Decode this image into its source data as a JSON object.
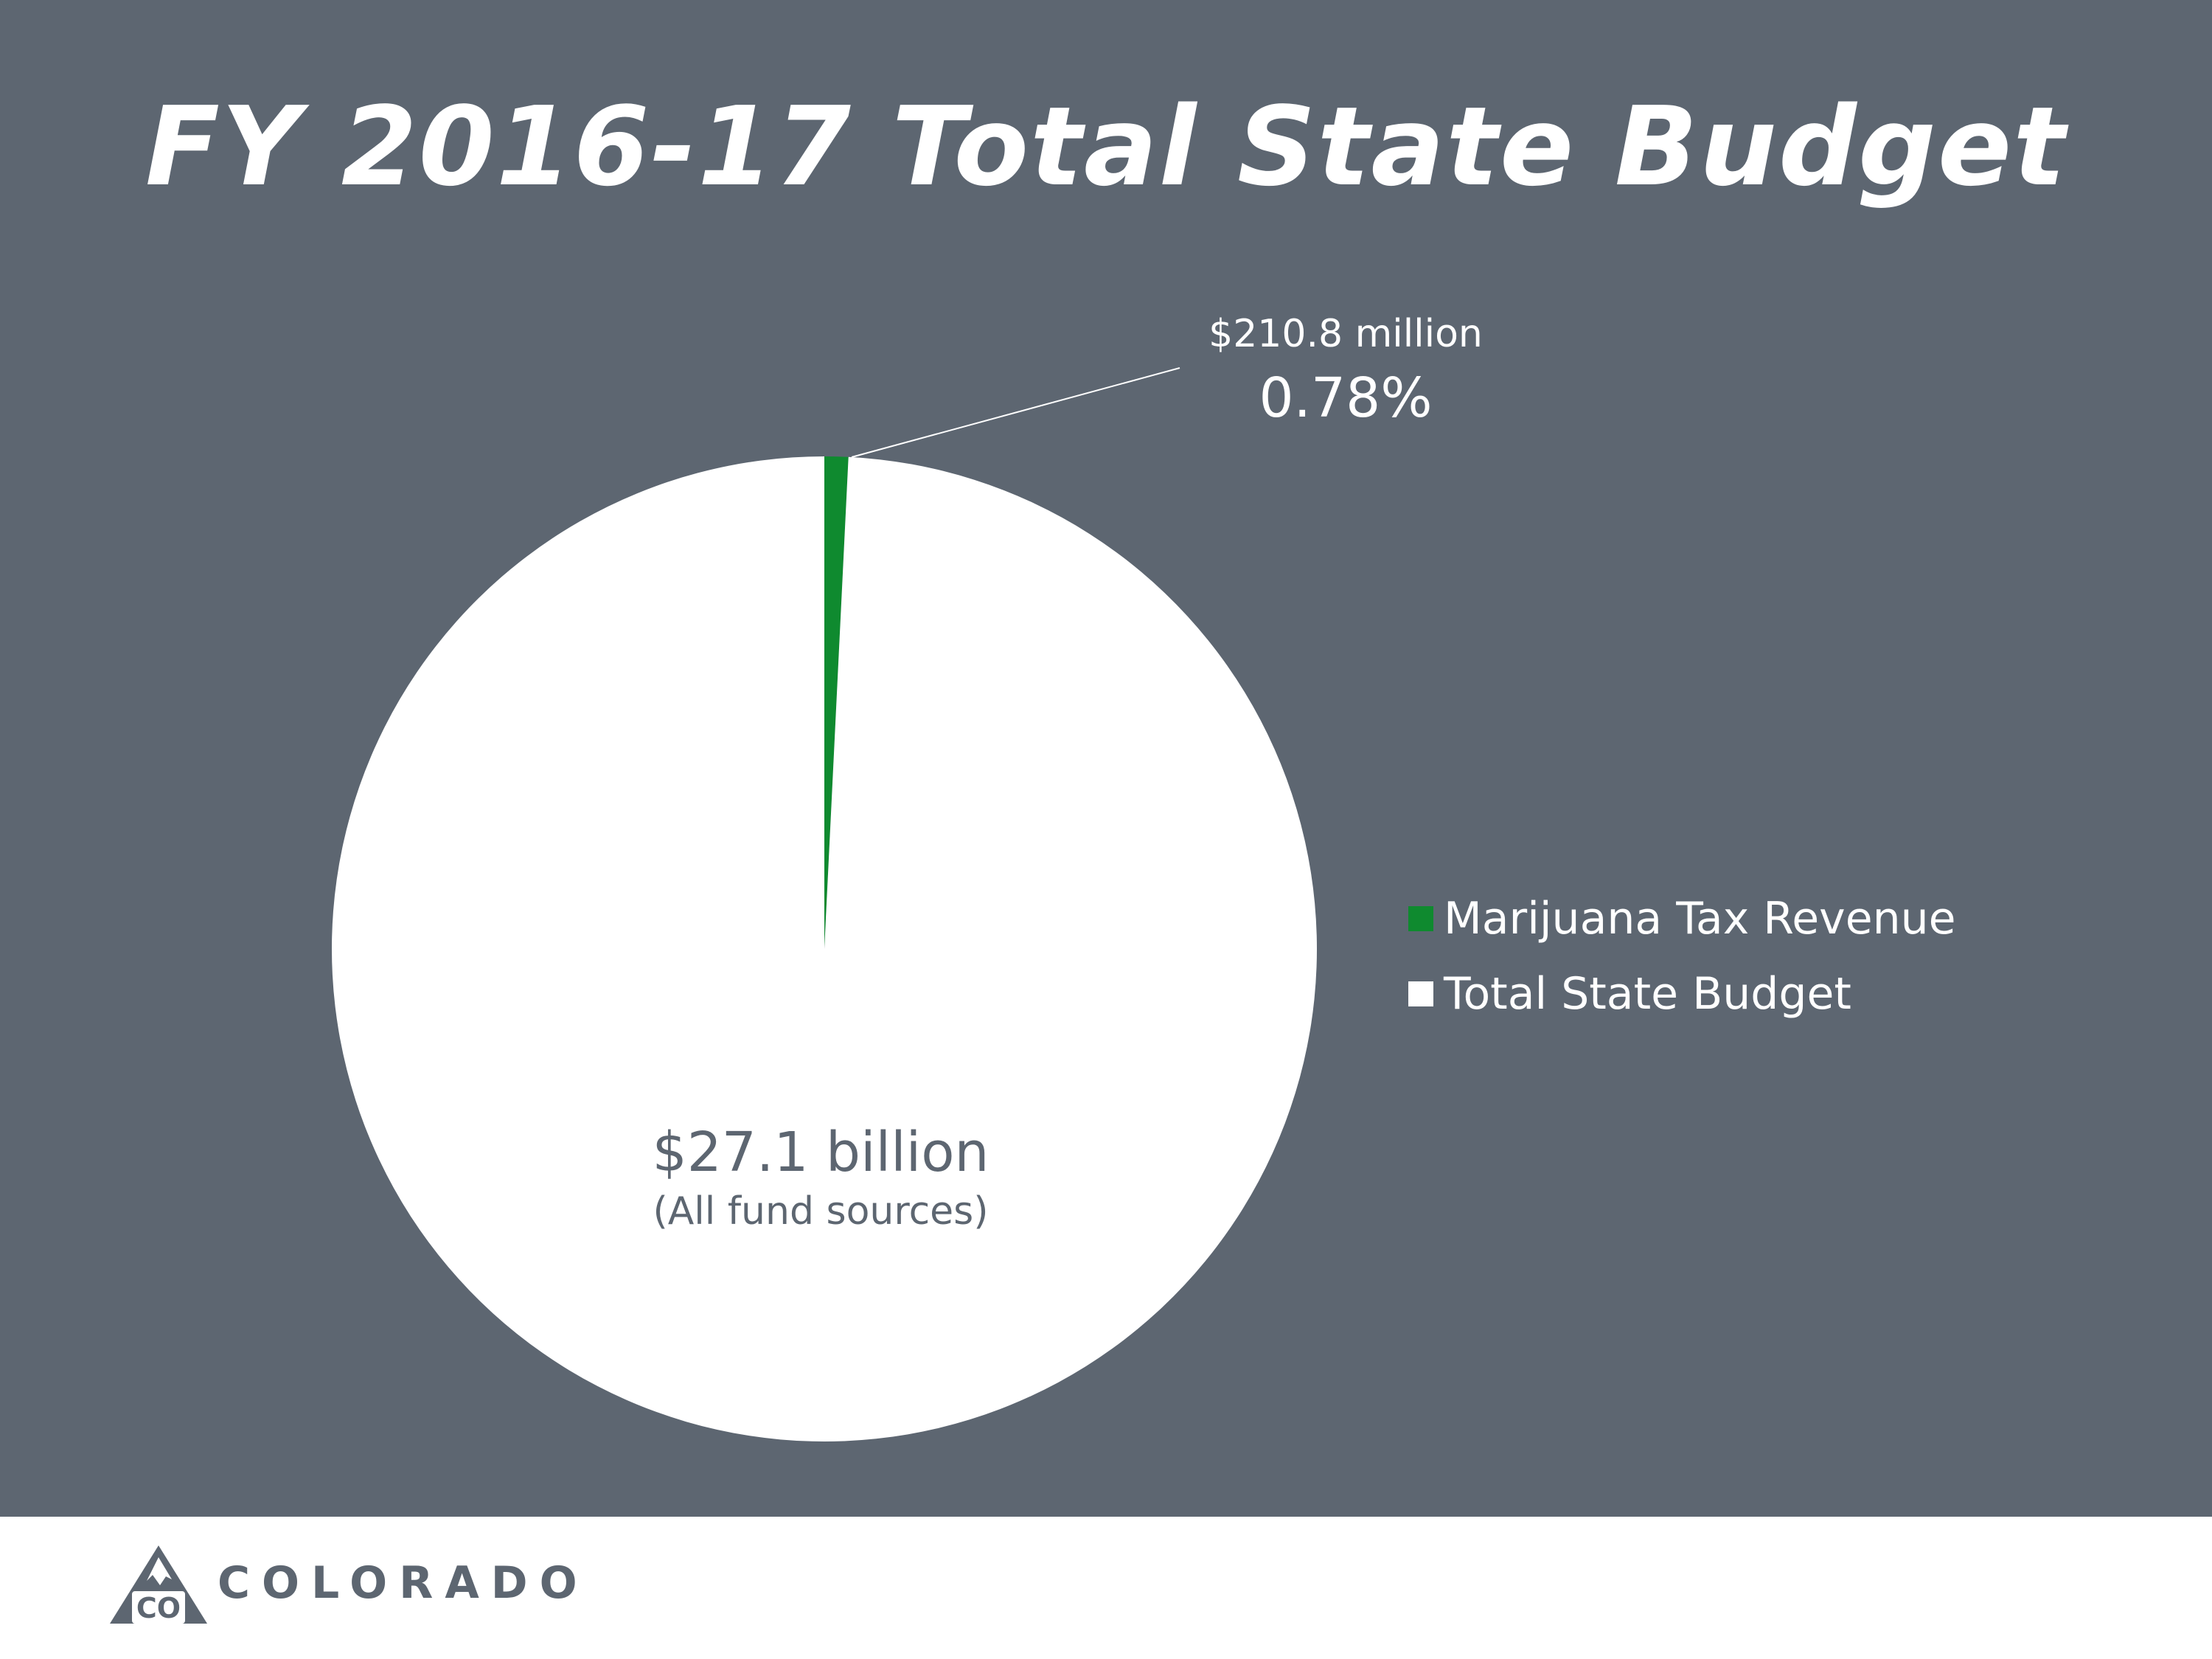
{
  "title": "FY 2016-17 Total State Budget",
  "colors": {
    "background": "#5d6671",
    "marijuana": "#0f8a2f",
    "budget": "#ffffff",
    "text_dark": "#5d6671",
    "text_light": "#ffffff"
  },
  "chart_data": {
    "type": "pie",
    "title": "FY 2016-17 Total State Budget",
    "slices": [
      {
        "label": "Marijuana Tax Revenue",
        "value": 0.78,
        "color": "#0f8a2f"
      },
      {
        "label": "Total State Budget",
        "value": 99.22,
        "color": "#ffffff"
      }
    ],
    "annotations": {
      "marijuana_amount": "$210.8 million",
      "marijuana_percent": "0.78%",
      "budget_amount": "$27.1 billion",
      "budget_note": "(All fund sources)"
    },
    "legend": [
      {
        "label": "Marijuana Tax Revenue",
        "color": "#0f8a2f"
      },
      {
        "label": "Total State Budget",
        "color": "#ffffff"
      }
    ],
    "legend_position": "right"
  },
  "logo": {
    "badge": "CO",
    "wordmark": "COLORADO",
    "icon": "colorado-mountain-logo-icon"
  }
}
